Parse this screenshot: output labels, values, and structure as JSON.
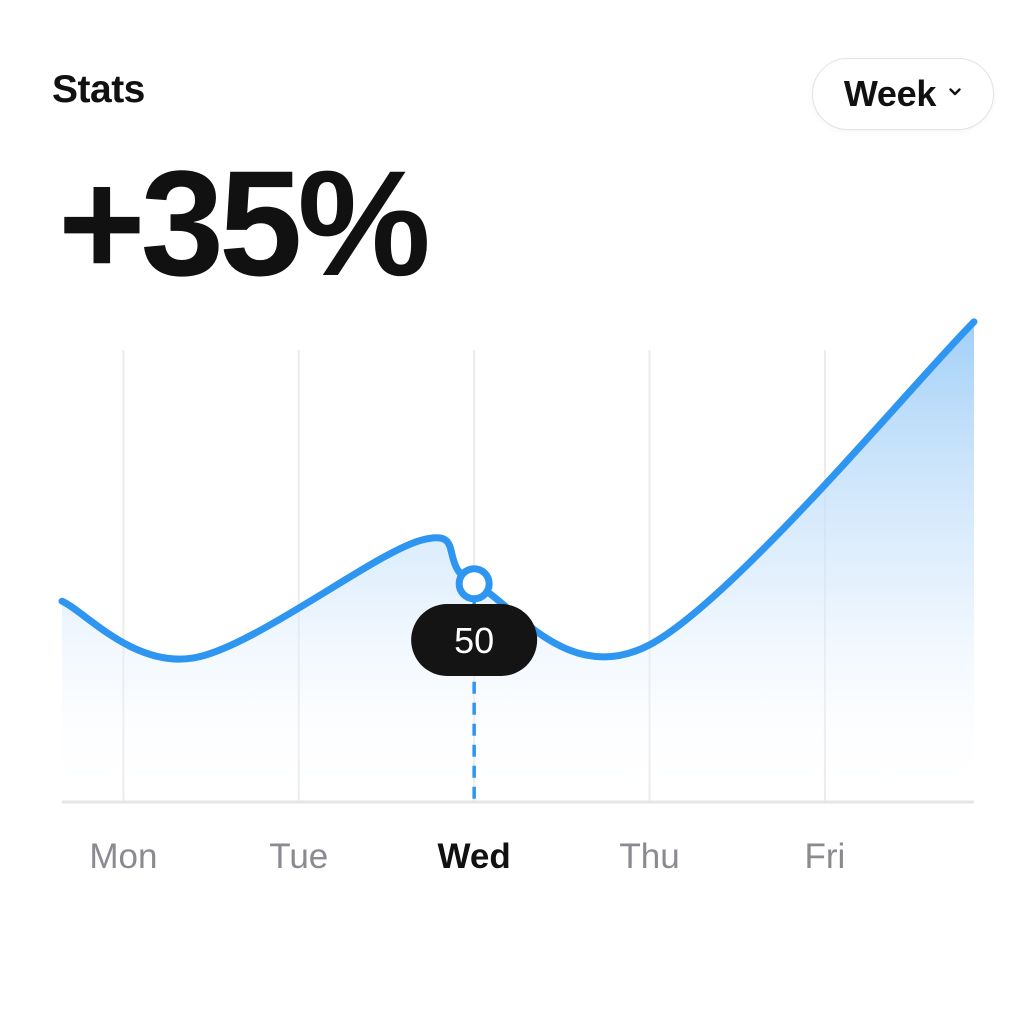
{
  "header": {
    "title": "Stats"
  },
  "period_select": {
    "selected": "Week",
    "icon": "chevron-down-icon"
  },
  "headline": {
    "value": "+35%"
  },
  "colors": {
    "line": "#2e96f0",
    "area_top": "#9dcdf7",
    "tooltip_bg": "#141414",
    "grid": "#ececee",
    "axis": "#e6e6e8",
    "label": "#8a8a90",
    "label_active": "#111111"
  },
  "chart_data": {
    "type": "area",
    "categories": [
      "Mon",
      "Tue",
      "Wed",
      "Thu",
      "Fri"
    ],
    "selected_category": "Wed",
    "series": [
      {
        "x": [
          -0.35,
          0.4,
          1.7,
          2.0,
          3.0,
          4.85
        ],
        "values": [
          46,
          33,
          60,
          50,
          36,
          110
        ]
      }
    ],
    "tooltip": {
      "x": 2.0,
      "value": "50"
    },
    "xlim": [
      -0.35,
      4.85
    ],
    "ylim": [
      0,
      115
    ],
    "grid": "vertical",
    "xlabel": "",
    "ylabel": ""
  }
}
